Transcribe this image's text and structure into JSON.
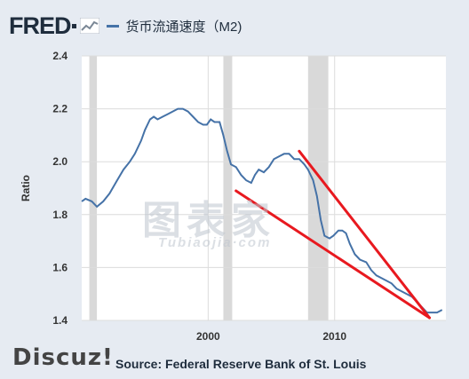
{
  "header": {
    "logo_text": "FRED",
    "series_title": "货币流通速度（M2)"
  },
  "watermark": {
    "main": "图表家",
    "sub": "Tubiaojia·com"
  },
  "discuz_text": "Discuz!",
  "source_text": "Source: Federal Reserve Bank of St. Louis",
  "colors": {
    "series": "#4572a7",
    "trendline": "#e8191f",
    "recession": "#d9d9d9",
    "grid": "#dcdcdc"
  },
  "chart_data": {
    "type": "line",
    "title": "货币流通速度（M2)",
    "xlabel": "",
    "ylabel": "Ratio",
    "xlim": [
      1990.0,
      2018.8
    ],
    "ylim": [
      1.4,
      2.4
    ],
    "yticks": [
      "1.4",
      "1.6",
      "1.8",
      "2.0",
      "2.2",
      "2.4"
    ],
    "xticks": [
      "2000",
      "2010"
    ],
    "grid": true,
    "recessions": [
      [
        1990.6,
        1991.2
      ],
      [
        2001.2,
        2001.9
      ],
      [
        2007.9,
        2009.5
      ]
    ],
    "series": [
      {
        "values": [
          [
            1990.0,
            1.85
          ],
          [
            1990.3,
            1.86
          ],
          [
            1990.8,
            1.85
          ],
          [
            1991.2,
            1.83
          ],
          [
            1991.7,
            1.85
          ],
          [
            1992.2,
            1.88
          ],
          [
            1992.8,
            1.93
          ],
          [
            1993.3,
            1.97
          ],
          [
            1993.8,
            2.0
          ],
          [
            1994.2,
            2.03
          ],
          [
            1994.7,
            2.08
          ],
          [
            1995.0,
            2.12
          ],
          [
            1995.4,
            2.16
          ],
          [
            1995.7,
            2.17
          ],
          [
            1996.0,
            2.16
          ],
          [
            1996.4,
            2.17
          ],
          [
            1996.8,
            2.18
          ],
          [
            1997.2,
            2.19
          ],
          [
            1997.6,
            2.2
          ],
          [
            1998.0,
            2.2
          ],
          [
            1998.4,
            2.19
          ],
          [
            1998.8,
            2.17
          ],
          [
            1999.2,
            2.15
          ],
          [
            1999.6,
            2.14
          ],
          [
            1999.9,
            2.14
          ],
          [
            2000.2,
            2.16
          ],
          [
            2000.5,
            2.15
          ],
          [
            2000.9,
            2.15
          ],
          [
            2001.2,
            2.1
          ],
          [
            2001.5,
            2.04
          ],
          [
            2001.8,
            1.99
          ],
          [
            2002.2,
            1.98
          ],
          [
            2002.6,
            1.95
          ],
          [
            2003.0,
            1.93
          ],
          [
            2003.4,
            1.92
          ],
          [
            2003.7,
            1.95
          ],
          [
            2004.0,
            1.97
          ],
          [
            2004.4,
            1.96
          ],
          [
            2004.8,
            1.98
          ],
          [
            2005.2,
            2.01
          ],
          [
            2005.6,
            2.02
          ],
          [
            2006.0,
            2.03
          ],
          [
            2006.4,
            2.03
          ],
          [
            2006.8,
            2.01
          ],
          [
            2007.2,
            2.01
          ],
          [
            2007.6,
            1.99
          ],
          [
            2007.9,
            1.97
          ],
          [
            2008.3,
            1.93
          ],
          [
            2008.6,
            1.87
          ],
          [
            2008.9,
            1.78
          ],
          [
            2009.2,
            1.72
          ],
          [
            2009.6,
            1.71
          ],
          [
            2009.9,
            1.72
          ],
          [
            2010.3,
            1.74
          ],
          [
            2010.6,
            1.74
          ],
          [
            2010.9,
            1.73
          ],
          [
            2011.2,
            1.69
          ],
          [
            2011.6,
            1.65
          ],
          [
            2012.0,
            1.63
          ],
          [
            2012.5,
            1.62
          ],
          [
            2012.9,
            1.59
          ],
          [
            2013.3,
            1.57
          ],
          [
            2013.7,
            1.56
          ],
          [
            2014.1,
            1.55
          ],
          [
            2014.5,
            1.54
          ],
          [
            2014.9,
            1.52
          ],
          [
            2015.3,
            1.51
          ],
          [
            2015.7,
            1.5
          ],
          [
            2016.1,
            1.49
          ],
          [
            2016.5,
            1.47
          ],
          [
            2016.9,
            1.45
          ],
          [
            2017.3,
            1.43
          ],
          [
            2017.7,
            1.43
          ],
          [
            2018.1,
            1.43
          ],
          [
            2018.5,
            1.44
          ]
        ]
      }
    ],
    "annotations": [
      {
        "type": "trendline",
        "from": [
          2002.2,
          1.89
        ],
        "to": [
          2017.5,
          1.41
        ]
      },
      {
        "type": "trendline",
        "from": [
          2007.2,
          2.04
        ],
        "to": [
          2017.5,
          1.41
        ]
      }
    ]
  }
}
